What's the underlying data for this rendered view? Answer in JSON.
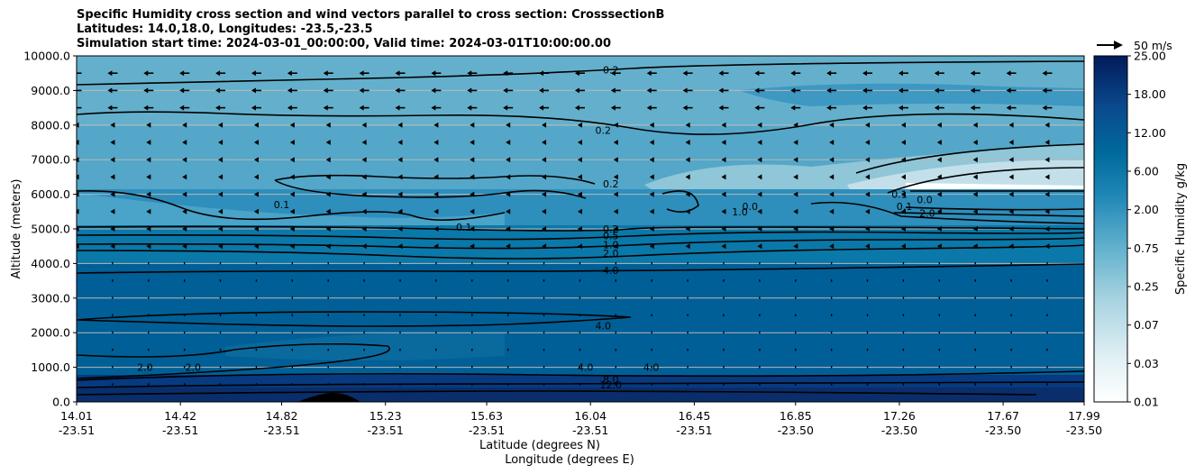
{
  "title": {
    "line1": "Specific Humidity cross section and wind vectors parallel to cross section: CrosssectionB",
    "line2": "Latitudes: 14.0,18.0, Longitudes: -23.5,-23.5",
    "line3": "Simulation start time: 2024-03-01_00:00:00, Valid time: 2024-03-01T10:00:00.00"
  },
  "reference_vector": {
    "label": "50 m/s",
    "speed": 50
  },
  "colors": {
    "deep": "#0a2e6b",
    "bottom": "#073a80",
    "mid": "#005f96",
    "mid2": "#0a6a9e",
    "upper": "#2e8ebc",
    "upper2": "#54a7c8",
    "top": "#64b0cc",
    "light": "#8fc6d8",
    "pale": "#c3e0ea",
    "white": "#ffffff",
    "grid": "#b8b8b8",
    "terrain": "#000000"
  },
  "chart_data": {
    "type": "contourf",
    "title": "Specific Humidity cross section and wind vectors parallel to cross section: CrosssectionB",
    "ylabel": "Altitude (meters)",
    "xlabel_line1": "Latitude (degrees N)",
    "xlabel_line2": "Longitude (degrees E)",
    "ylim": [
      0,
      10000
    ],
    "y_ticks": [
      "0.0",
      "1000.0",
      "2000.0",
      "3000.0",
      "4000.0",
      "5000.0",
      "6000.0",
      "7000.0",
      "8000.0",
      "9000.0",
      "10000.0"
    ],
    "y_tick_values": [
      0,
      1000,
      2000,
      3000,
      4000,
      5000,
      6000,
      7000,
      8000,
      9000,
      10000
    ],
    "x_tick_lat": [
      "14.01",
      "14.42",
      "14.82",
      "15.23",
      "15.63",
      "16.04",
      "16.45",
      "16.85",
      "17.26",
      "17.67",
      "17.99"
    ],
    "x_tick_lon": [
      "-23.51",
      "-23.51",
      "-23.51",
      "-23.51",
      "-23.51",
      "-23.51",
      "-23.51",
      "-23.50",
      "-23.50",
      "-23.50",
      "-23.50"
    ],
    "x_tick_values": [
      14.01,
      14.42,
      14.82,
      15.23,
      15.63,
      16.04,
      16.45,
      16.85,
      17.26,
      17.67,
      17.99
    ],
    "xlim": [
      14.01,
      17.99
    ],
    "grid": "horizontal",
    "colorbar": {
      "label": "Specific Humidity g/kg",
      "levels": [
        "0.01",
        "0.03",
        "0.07",
        "0.25",
        "0.75",
        "2.00",
        "6.00",
        "12.00",
        "18.00",
        "25.00"
      ]
    },
    "contour_labels": [
      {
        "text": "0.2",
        "lat": 16.12,
        "alt": 9600
      },
      {
        "text": "0.2",
        "lat": 16.09,
        "alt": 7850
      },
      {
        "text": "0.2",
        "lat": 16.12,
        "alt": 6300
      },
      {
        "text": "0.1",
        "lat": 14.82,
        "alt": 5700
      },
      {
        "text": "0.1",
        "lat": 15.54,
        "alt": 5050
      },
      {
        "text": "0.2",
        "lat": 16.12,
        "alt": 5000
      },
      {
        "text": "0.5",
        "lat": 16.12,
        "alt": 4800
      },
      {
        "text": "1.0",
        "lat": 16.12,
        "alt": 4550
      },
      {
        "text": "2.0",
        "lat": 16.12,
        "alt": 4300
      },
      {
        "text": "4.0",
        "lat": 16.12,
        "alt": 3800
      },
      {
        "text": "4.0",
        "lat": 16.09,
        "alt": 2200
      },
      {
        "text": "2.0",
        "lat": 14.28,
        "alt": 1000
      },
      {
        "text": "2.0",
        "lat": 14.47,
        "alt": 1000
      },
      {
        "text": "4.0",
        "lat": 16.02,
        "alt": 1000
      },
      {
        "text": "4.0",
        "lat": 16.28,
        "alt": 1000
      },
      {
        "text": "8.0",
        "lat": 16.12,
        "alt": 650
      },
      {
        "text": "12.0",
        "lat": 16.12,
        "alt": 500
      },
      {
        "text": "0.0",
        "lat": 16.67,
        "alt": 5650
      },
      {
        "text": "1.0",
        "lat": 16.63,
        "alt": 5500
      },
      {
        "text": "0.1",
        "lat": 17.26,
        "alt": 6000
      },
      {
        "text": "0.1",
        "lat": 17.28,
        "alt": 5650
      },
      {
        "text": "0.0",
        "lat": 17.36,
        "alt": 5850
      },
      {
        "text": "2.0",
        "lat": 17.37,
        "alt": 5450
      }
    ]
  }
}
